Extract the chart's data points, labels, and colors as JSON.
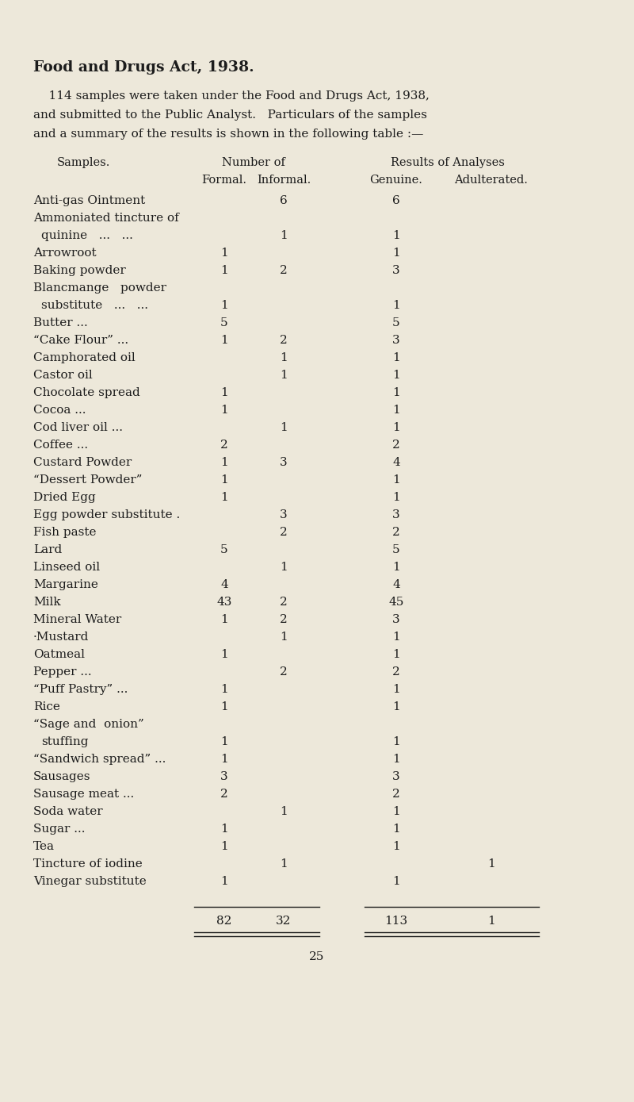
{
  "title": "Food and Drugs Act, 1938.",
  "intro_lines": [
    "    114 samples were taken under the Food and Drugs Act, 1938,",
    "and submitted to the Public Analyst.   Particulars of the samples",
    "and a summary of the results is shown in the following table :—"
  ],
  "rows": [
    {
      "label": "Anti-gas Ointment",
      "dots": "...",
      "label2": "",
      "formal": "",
      "informal": "6",
      "genuine": "6",
      "adulterated": ""
    },
    {
      "label": "Ammoniated tincture of",
      "dots": "",
      "label2": "  quinine   ...   ...",
      "formal": "",
      "informal": "1",
      "genuine": "1",
      "adulterated": ""
    },
    {
      "label": "Arrowroot",
      "dots": "...   ...",
      "label2": "",
      "formal": "1",
      "informal": "",
      "genuine": "1",
      "adulterated": ""
    },
    {
      "label": "Baking powder",
      "dots": "...",
      "label2": "",
      "formal": "1",
      "informal": "2",
      "genuine": "3",
      "adulterated": ""
    },
    {
      "label": "Blancmange   powder",
      "dots": "",
      "label2": "  substitute   ...   ...",
      "formal": "1",
      "informal": "",
      "genuine": "1",
      "adulterated": ""
    },
    {
      "label": "Butter ...",
      "dots": "...   ...",
      "label2": "",
      "formal": "5",
      "informal": "",
      "genuine": "5",
      "adulterated": ""
    },
    {
      "label": "“Cake Flour” ...",
      "dots": "...",
      "label2": "",
      "formal": "1",
      "informal": "2",
      "genuine": "3",
      "adulterated": ""
    },
    {
      "label": "Camphorated oil",
      "dots": "...",
      "label2": "",
      "formal": "",
      "informal": "1",
      "genuine": "1",
      "adulterated": ""
    },
    {
      "label": "Castor oil",
      "dots": "...   ...",
      "label2": "",
      "formal": "",
      "informal": "1",
      "genuine": "1",
      "adulterated": ""
    },
    {
      "label": "Chocolate spread",
      "dots": "...",
      "label2": "",
      "formal": "1",
      "informal": "",
      "genuine": "1",
      "adulterated": ""
    },
    {
      "label": "Cocoa ...",
      "dots": "...   ...",
      "label2": "",
      "formal": "1",
      "informal": "",
      "genuine": "1",
      "adulterated": ""
    },
    {
      "label": "Cod liver oil ...",
      "dots": "...",
      "label2": "",
      "formal": "",
      "informal": "1",
      "genuine": "1",
      "adulterated": ""
    },
    {
      "label": "Coffee ...",
      "dots": "...   ...",
      "label2": "",
      "formal": "2",
      "informal": "",
      "genuine": "2",
      "adulterated": ""
    },
    {
      "label": "Custard Powder",
      "dots": "...",
      "label2": "",
      "formal": "1",
      "informal": "3",
      "genuine": "4",
      "adulterated": ""
    },
    {
      "label": "“Dessert Powder”",
      "dots": "...",
      "label2": "",
      "formal": "1",
      "informal": "",
      "genuine": "1",
      "adulterated": ""
    },
    {
      "label": "Dried Egg",
      "dots": "...   ...",
      "label2": "",
      "formal": "1",
      "informal": "",
      "genuine": "1",
      "adulterated": ""
    },
    {
      "label": "Egg powder substitute .",
      "dots": "",
      "label2": "",
      "formal": "",
      "informal": "3",
      "genuine": "3",
      "adulterated": ""
    },
    {
      "label": "Fish paste",
      "dots": "...   ...",
      "label2": "",
      "formal": "",
      "informal": "2",
      "genuine": "2",
      "adulterated": ""
    },
    {
      "label": "Lard",
      "dots": "...   ...   ...",
      "label2": "",
      "formal": "5",
      "informal": "",
      "genuine": "5",
      "adulterated": ""
    },
    {
      "label": "Linseed oil",
      "dots": "...   ...",
      "label2": "",
      "formal": "",
      "informal": "1",
      "genuine": "1",
      "adulterated": ""
    },
    {
      "label": "Margarine",
      "dots": "...   ...",
      "label2": "",
      "formal": "4",
      "informal": "",
      "genuine": "4",
      "adulterated": ""
    },
    {
      "label": "Milk",
      "dots": "...   ...   ...",
      "label2": "",
      "formal": "43",
      "informal": "2",
      "genuine": "45",
      "adulterated": ""
    },
    {
      "label": "Mineral Water",
      "dots": "...",
      "label2": "",
      "formal": "1",
      "informal": "2",
      "genuine": "3",
      "adulterated": ""
    },
    {
      "label": "·Mustard",
      "dots": "...   ...",
      "label2": "",
      "formal": "",
      "informal": "1",
      "genuine": "1",
      "adulterated": ""
    },
    {
      "label": "Oatmeal",
      "dots": "...   ...",
      "label2": "",
      "formal": "1",
      "informal": "",
      "genuine": "1",
      "adulterated": ""
    },
    {
      "label": "Pepper ...",
      "dots": "...   ...",
      "label2": "",
      "formal": "",
      "informal": "2",
      "genuine": "2",
      "adulterated": ""
    },
    {
      "label": "“Puff Pastry” ...",
      "dots": "...",
      "label2": "",
      "formal": "1",
      "informal": "",
      "genuine": "1",
      "adulterated": ""
    },
    {
      "label": "Rice",
      "dots": "...   ...   ...",
      "label2": "",
      "formal": "1",
      "informal": "",
      "genuine": "1",
      "adulterated": ""
    },
    {
      "label": "“Sage and  onion”",
      "dots": "",
      "label2": "                 stuffing",
      "formal": "1",
      "informal": "",
      "genuine": "1",
      "adulterated": ""
    },
    {
      "label": "“Sandwich spread” ...",
      "dots": "...",
      "label2": "",
      "formal": "1",
      "informal": "",
      "genuine": "1",
      "adulterated": ""
    },
    {
      "label": "Sausages",
      "dots": "...   ...",
      "label2": "",
      "formal": "3",
      "informal": "",
      "genuine": "3",
      "adulterated": ""
    },
    {
      "label": "Sausage meat ...",
      "dots": "...",
      "label2": "",
      "formal": "2",
      "informal": "",
      "genuine": "2",
      "adulterated": ""
    },
    {
      "label": "Soda water",
      "dots": "...   ...",
      "label2": "",
      "formal": "",
      "informal": "1",
      "genuine": "1",
      "adulterated": ""
    },
    {
      "label": "Sugar ...",
      "dots": "...   ...",
      "label2": "",
      "formal": "1",
      "informal": "",
      "genuine": "1",
      "adulterated": ""
    },
    {
      "label": "Tea",
      "dots": "...   ...   ...",
      "label2": "",
      "formal": "1",
      "informal": "",
      "genuine": "1",
      "adulterated": ""
    },
    {
      "label": "Tincture of iodine",
      "dots": "...",
      "label2": "",
      "formal": "",
      "informal": "1",
      "genuine": "",
      "adulterated": "1"
    },
    {
      "label": "Vinegar substitute",
      "dots": "...",
      "label2": "",
      "formal": "1",
      "informal": "",
      "genuine": "1",
      "adulterated": ""
    }
  ],
  "totals": {
    "formal": "82",
    "informal": "32",
    "genuine": "113",
    "adulterated": "1"
  },
  "page_number": "25",
  "bg_color": "#ede8da",
  "text_color": "#1c1c1c"
}
